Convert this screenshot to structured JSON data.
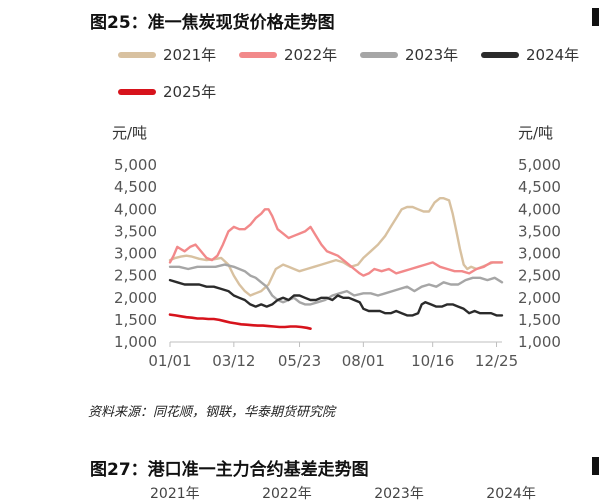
{
  "figure": {
    "title": "图25：准一焦炭现货价格走势图",
    "source": "资料来源：同花顺，钢联，华泰期货研究院",
    "next_title": "图27：港口准一主力合约基差走势图",
    "next_legend": [
      "2021年",
      "2022年",
      "2023年",
      "2024年"
    ]
  },
  "chart_data": {
    "type": "line",
    "title": "图25：准一焦炭现货价格走势图",
    "ylabel_left": "元/吨",
    "ylabel_right": "元/吨",
    "ylim": [
      1000,
      5000
    ],
    "yticks": [
      "5,000",
      "4,500",
      "4,000",
      "3,500",
      "3,000",
      "2,500",
      "2,000",
      "1,500",
      "1,000"
    ],
    "ytick_values": [
      5000,
      4500,
      4000,
      3500,
      3000,
      2500,
      2000,
      1500,
      1000
    ],
    "xticks": [
      "01/01",
      "03/12",
      "05/23",
      "08/01",
      "10/16",
      "12/25"
    ],
    "xtick_days": [
      0,
      70,
      142,
      212,
      288,
      358
    ],
    "xlim_days": [
      0,
      364
    ],
    "grid": false,
    "legend_position": "top",
    "series": [
      {
        "name": "2021年",
        "color": "#D8C1A0",
        "x": [
          0,
          6,
          12,
          18,
          24,
          32,
          40,
          48,
          56,
          64,
          70,
          76,
          82,
          88,
          94,
          100,
          108,
          116,
          124,
          130,
          136,
          142,
          150,
          158,
          166,
          174,
          182,
          190,
          198,
          206,
          212,
          220,
          228,
          236,
          242,
          248,
          254,
          260,
          266,
          272,
          278,
          284,
          290,
          296,
          300,
          306,
          310,
          314,
          318,
          322,
          326,
          330,
          336,
          342,
          348,
          354,
          360,
          364
        ],
        "y": [
          2850,
          2900,
          2930,
          2950,
          2930,
          2880,
          2850,
          2870,
          2900,
          2750,
          2500,
          2300,
          2150,
          2050,
          2100,
          2150,
          2300,
          2650,
          2750,
          2700,
          2650,
          2600,
          2650,
          2700,
          2750,
          2800,
          2850,
          2800,
          2700,
          2750,
          2900,
          3050,
          3200,
          3400,
          3600,
          3800,
          4000,
          4050,
          4050,
          4000,
          3950,
          3950,
          4150,
          4250,
          4250,
          4200,
          3900,
          3500,
          3100,
          2750,
          2650,
          2700,
          2650,
          2700,
          2750,
          2800,
          2800,
          2800
        ]
      },
      {
        "name": "2022年",
        "color": "#F2898A",
        "x": [
          0,
          4,
          8,
          12,
          16,
          22,
          28,
          34,
          40,
          46,
          52,
          58,
          64,
          70,
          76,
          82,
          88,
          94,
          100,
          104,
          108,
          112,
          118,
          124,
          130,
          136,
          142,
          148,
          154,
          160,
          166,
          172,
          178,
          184,
          190,
          196,
          202,
          208,
          212,
          218,
          224,
          232,
          240,
          248,
          256,
          264,
          272,
          280,
          288,
          296,
          304,
          312,
          320,
          328,
          336,
          344,
          352,
          360,
          364
        ],
        "y": [
          2800,
          2950,
          3150,
          3100,
          3050,
          3150,
          3200,
          3050,
          2900,
          2850,
          2950,
          3200,
          3500,
          3600,
          3550,
          3550,
          3650,
          3800,
          3900,
          4000,
          4000,
          3850,
          3550,
          3450,
          3350,
          3400,
          3450,
          3500,
          3600,
          3400,
          3200,
          3050,
          3000,
          2950,
          2850,
          2750,
          2650,
          2550,
          2500,
          2550,
          2650,
          2600,
          2650,
          2550,
          2600,
          2650,
          2700,
          2750,
          2800,
          2700,
          2650,
          2600,
          2600,
          2550,
          2650,
          2700,
          2800,
          2800,
          2800
        ]
      },
      {
        "name": "2023年",
        "color": "#A6A6A6",
        "x": [
          0,
          10,
          20,
          30,
          40,
          50,
          60,
          70,
          76,
          82,
          88,
          94,
          100,
          106,
          112,
          118,
          124,
          130,
          136,
          142,
          148,
          154,
          162,
          170,
          178,
          186,
          194,
          202,
          212,
          220,
          228,
          236,
          244,
          252,
          260,
          268,
          276,
          284,
          292,
          300,
          308,
          316,
          324,
          332,
          340,
          348,
          356,
          364
        ],
        "y": [
          2700,
          2700,
          2650,
          2700,
          2700,
          2700,
          2750,
          2700,
          2650,
          2600,
          2500,
          2450,
          2350,
          2250,
          2050,
          1950,
          1900,
          1950,
          2000,
          1900,
          1850,
          1850,
          1900,
          1950,
          2050,
          2100,
          2150,
          2050,
          2100,
          2100,
          2050,
          2100,
          2150,
          2200,
          2250,
          2150,
          2250,
          2300,
          2250,
          2350,
          2300,
          2300,
          2400,
          2450,
          2450,
          2400,
          2450,
          2350
        ]
      },
      {
        "name": "2024年",
        "color": "#2B2B2B",
        "x": [
          0,
          8,
          16,
          24,
          32,
          40,
          48,
          56,
          64,
          70,
          76,
          82,
          88,
          94,
          100,
          106,
          112,
          118,
          124,
          130,
          136,
          142,
          148,
          154,
          160,
          166,
          172,
          178,
          184,
          190,
          196,
          202,
          208,
          212,
          218,
          224,
          230,
          236,
          242,
          248,
          254,
          260,
          266,
          272,
          276,
          280,
          286,
          292,
          298,
          304,
          310,
          316,
          322,
          328,
          334,
          340,
          346,
          352,
          358,
          364
        ],
        "y": [
          2400,
          2350,
          2300,
          2300,
          2300,
          2250,
          2250,
          2200,
          2150,
          2050,
          2000,
          1950,
          1850,
          1800,
          1850,
          1800,
          1850,
          1950,
          2000,
          1950,
          2050,
          2050,
          2000,
          1950,
          1950,
          2000,
          2000,
          1950,
          2050,
          2000,
          2000,
          1950,
          1900,
          1750,
          1700,
          1700,
          1700,
          1650,
          1650,
          1700,
          1650,
          1600,
          1600,
          1650,
          1850,
          1900,
          1850,
          1800,
          1800,
          1850,
          1850,
          1800,
          1750,
          1650,
          1700,
          1650,
          1650,
          1650,
          1600,
          1600
        ]
      },
      {
        "name": "2025年",
        "color": "#D7131C",
        "x": [
          0,
          6,
          12,
          18,
          24,
          30,
          36,
          42,
          48,
          54,
          60,
          66,
          72,
          78,
          84,
          90,
          96,
          102,
          108,
          114,
          120,
          126,
          132,
          138,
          144,
          150,
          154
        ],
        "y": [
          1620,
          1600,
          1580,
          1560,
          1550,
          1530,
          1530,
          1520,
          1520,
          1500,
          1470,
          1440,
          1420,
          1400,
          1390,
          1380,
          1370,
          1370,
          1360,
          1350,
          1340,
          1340,
          1350,
          1350,
          1340,
          1320,
          1300
        ]
      }
    ]
  }
}
